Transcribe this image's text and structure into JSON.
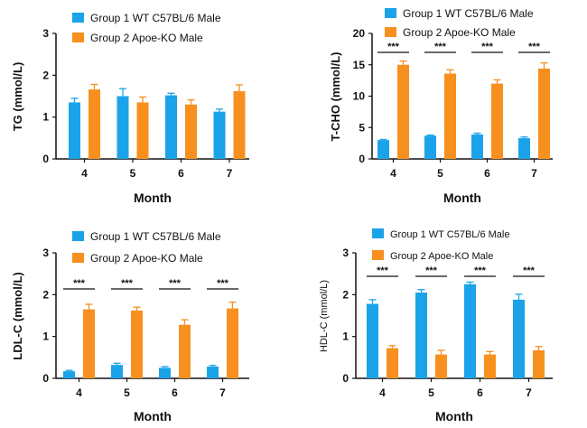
{
  "colors": {
    "group1": "#1aa3e8",
    "group2": "#f7901e",
    "axis": "#111111"
  },
  "chart_data": [
    {
      "type": "bar",
      "ylabel": "TG (mmol/L)",
      "xlabel": "Month",
      "categories": [
        "4",
        "5",
        "6",
        "7"
      ],
      "ylim": [
        0,
        3
      ],
      "yticks": [
        0,
        1,
        2,
        3
      ],
      "legend_placement": "top",
      "series": [
        {
          "name": "Group 1 WT C57BL/6 Male",
          "values": [
            1.35,
            1.5,
            1.52,
            1.13
          ],
          "errors": [
            0.1,
            0.18,
            0.05,
            0.06
          ]
        },
        {
          "name": "Group 2 Apoe-KO Male",
          "values": [
            1.66,
            1.35,
            1.3,
            1.62
          ],
          "errors": [
            0.12,
            0.13,
            0.11,
            0.15
          ]
        }
      ],
      "annotations": []
    },
    {
      "type": "bar",
      "ylabel": "T-CHO (mmol/L)",
      "xlabel": "Month",
      "categories": [
        "4",
        "5",
        "6",
        "7"
      ],
      "ylim": [
        0,
        20
      ],
      "yticks": [
        0,
        5,
        10,
        15,
        20
      ],
      "legend_placement": "top",
      "series": [
        {
          "name": "Group 1 WT C57BL/6 Male",
          "values": [
            3.0,
            3.7,
            3.9,
            3.3
          ],
          "errors": [
            0.1,
            0.1,
            0.2,
            0.2
          ]
        },
        {
          "name": "Group 2 Apoe-KO Male",
          "values": [
            15.0,
            13.6,
            12.0,
            14.4
          ],
          "errors": [
            0.6,
            0.6,
            0.6,
            0.9
          ]
        }
      ],
      "annotations": [
        "***",
        "***",
        "***",
        "***"
      ]
    },
    {
      "type": "bar",
      "ylabel": "LDL-C (mmol/L)",
      "xlabel": "Month",
      "categories": [
        "4",
        "5",
        "6",
        "7"
      ],
      "ylim": [
        0,
        3
      ],
      "yticks": [
        0,
        1,
        2,
        3
      ],
      "legend_placement": "top",
      "series": [
        {
          "name": "Group 1 WT C57BL/6 Male",
          "values": [
            0.17,
            0.32,
            0.25,
            0.28
          ],
          "errors": [
            0.02,
            0.04,
            0.03,
            0.03
          ]
        },
        {
          "name": "Group 2 Apoe-KO Male",
          "values": [
            1.65,
            1.62,
            1.28,
            1.67
          ],
          "errors": [
            0.12,
            0.08,
            0.12,
            0.15
          ]
        }
      ],
      "annotations": [
        "***",
        "***",
        "***",
        "***"
      ]
    },
    {
      "type": "bar",
      "ylabel": "HDL-C (mmol/L)",
      "xlabel": "Month",
      "categories": [
        "4",
        "5",
        "6",
        "7"
      ],
      "ylim": [
        0,
        3
      ],
      "yticks": [
        0,
        1,
        2,
        3
      ],
      "legend_placement": "top",
      "series": [
        {
          "name": "Group 1 WT C57BL/6 Male",
          "values": [
            1.78,
            2.05,
            2.25,
            1.88
          ],
          "errors": [
            0.1,
            0.07,
            0.05,
            0.13
          ]
        },
        {
          "name": "Group 2 Apoe-KO Male",
          "values": [
            0.72,
            0.57,
            0.57,
            0.67
          ],
          "errors": [
            0.06,
            0.1,
            0.07,
            0.09
          ]
        }
      ],
      "annotations": [
        "***",
        "***",
        "***",
        "***"
      ]
    }
  ]
}
